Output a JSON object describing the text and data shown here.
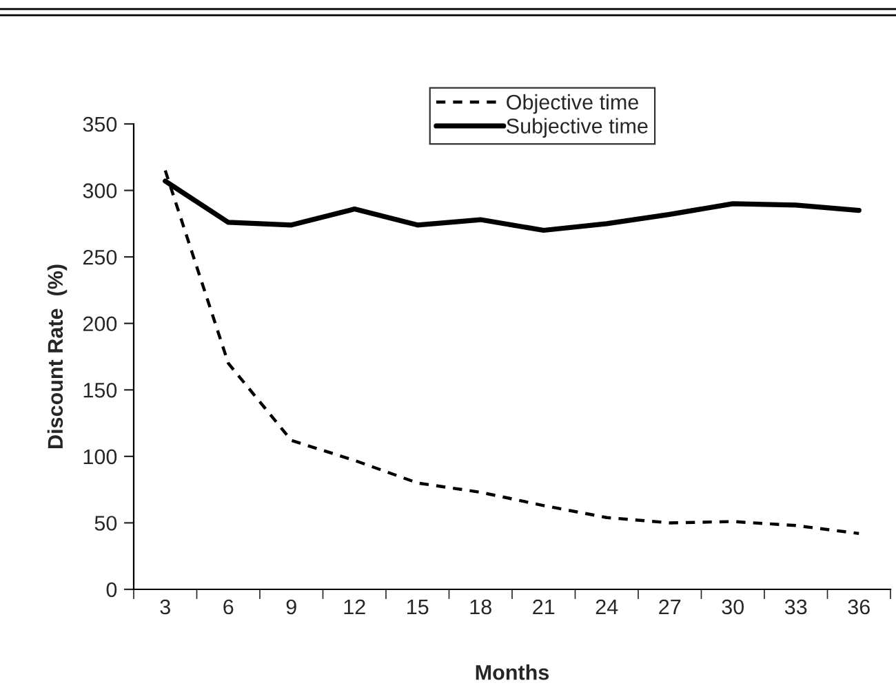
{
  "chart_data": {
    "type": "line",
    "xlabel": "Months",
    "ylabel": "Discount Rate  (%)",
    "categories": [
      "3",
      "6",
      "9",
      "12",
      "15",
      "18",
      "21",
      "24",
      "27",
      "30",
      "33",
      "36"
    ],
    "series": [
      {
        "name": "Objective time",
        "color": "#000000",
        "line_style": "dashed",
        "values": [
          315,
          170,
          112,
          97,
          80,
          73,
          63,
          54,
          50,
          51,
          48,
          42
        ]
      },
      {
        "name": "Subjective time",
        "color": "#000000",
        "line_style": "solid",
        "values": [
          307,
          276,
          274,
          286,
          274,
          278,
          270,
          275,
          282,
          290,
          289,
          285
        ]
      }
    ],
    "ylim": [
      0,
      350
    ],
    "yticks": [
      0,
      50,
      100,
      150,
      200,
      250,
      300,
      350
    ],
    "grid": false,
    "legend": "top",
    "marker": "none"
  }
}
